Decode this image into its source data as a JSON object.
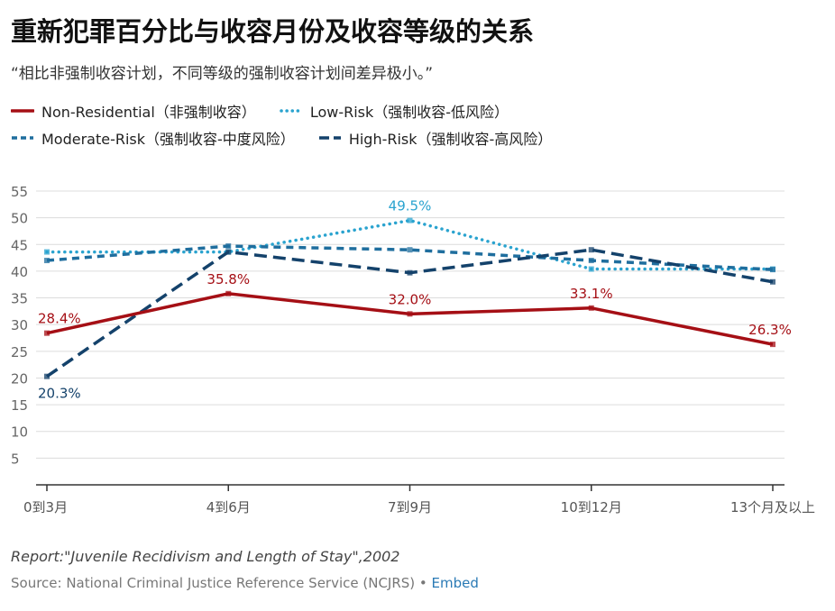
{
  "chart_data": {
    "type": "line",
    "title": "重新犯罪百分比与收容月份及收容等级的关系",
    "subtitle": "“相比非强制收容计划，不同等级的强制收容计划间差异极小。”",
    "categories": [
      "0到3月",
      "4到6月",
      "7到9月",
      "10到12月",
      "13个月及以上"
    ],
    "ylim": [
      0,
      55
    ],
    "yticks": [
      5,
      10,
      15,
      20,
      25,
      30,
      35,
      40,
      45,
      50,
      55
    ],
    "grid": true,
    "legend_position": "top",
    "series": [
      {
        "name": "Non-Residential（非强制收容）",
        "color": "#a50f15",
        "style": "solid",
        "values": [
          28.4,
          35.8,
          32.0,
          33.1,
          26.3
        ],
        "labels": [
          "28.4%",
          "35.8%",
          "32.0%",
          "33.1%",
          "26.3%"
        ]
      },
      {
        "name": "Low-Risk（强制收容-低风险）",
        "color": "#2aa3cf",
        "style": "dotted",
        "values": [
          43.6,
          43.6,
          49.5,
          40.4,
          40.4
        ],
        "labels": [
          "",
          "",
          "49.5%",
          "",
          ""
        ]
      },
      {
        "name": "Moderate-Risk（强制收容-中度风险）",
        "color": "#1f6e9e",
        "style": "dashed",
        "values": [
          42.0,
          44.7,
          44.0,
          42.0,
          40.3
        ],
        "labels": [
          "",
          "",
          "",
          "",
          ""
        ]
      },
      {
        "name": "High-Risk（强制收容-高风险）",
        "color": "#14426b",
        "style": "longdash",
        "values": [
          20.3,
          43.6,
          39.7,
          44.0,
          38.0
        ],
        "labels": [
          "20.3%",
          "",
          "",
          "",
          ""
        ]
      }
    ]
  },
  "notes": "Report:\"Juvenile Recidivism and Length of Stay\",2002",
  "source_prefix": "Source: National Criminal Justice Reference Service (NCJRS) • ",
  "embed_label": "Embed"
}
